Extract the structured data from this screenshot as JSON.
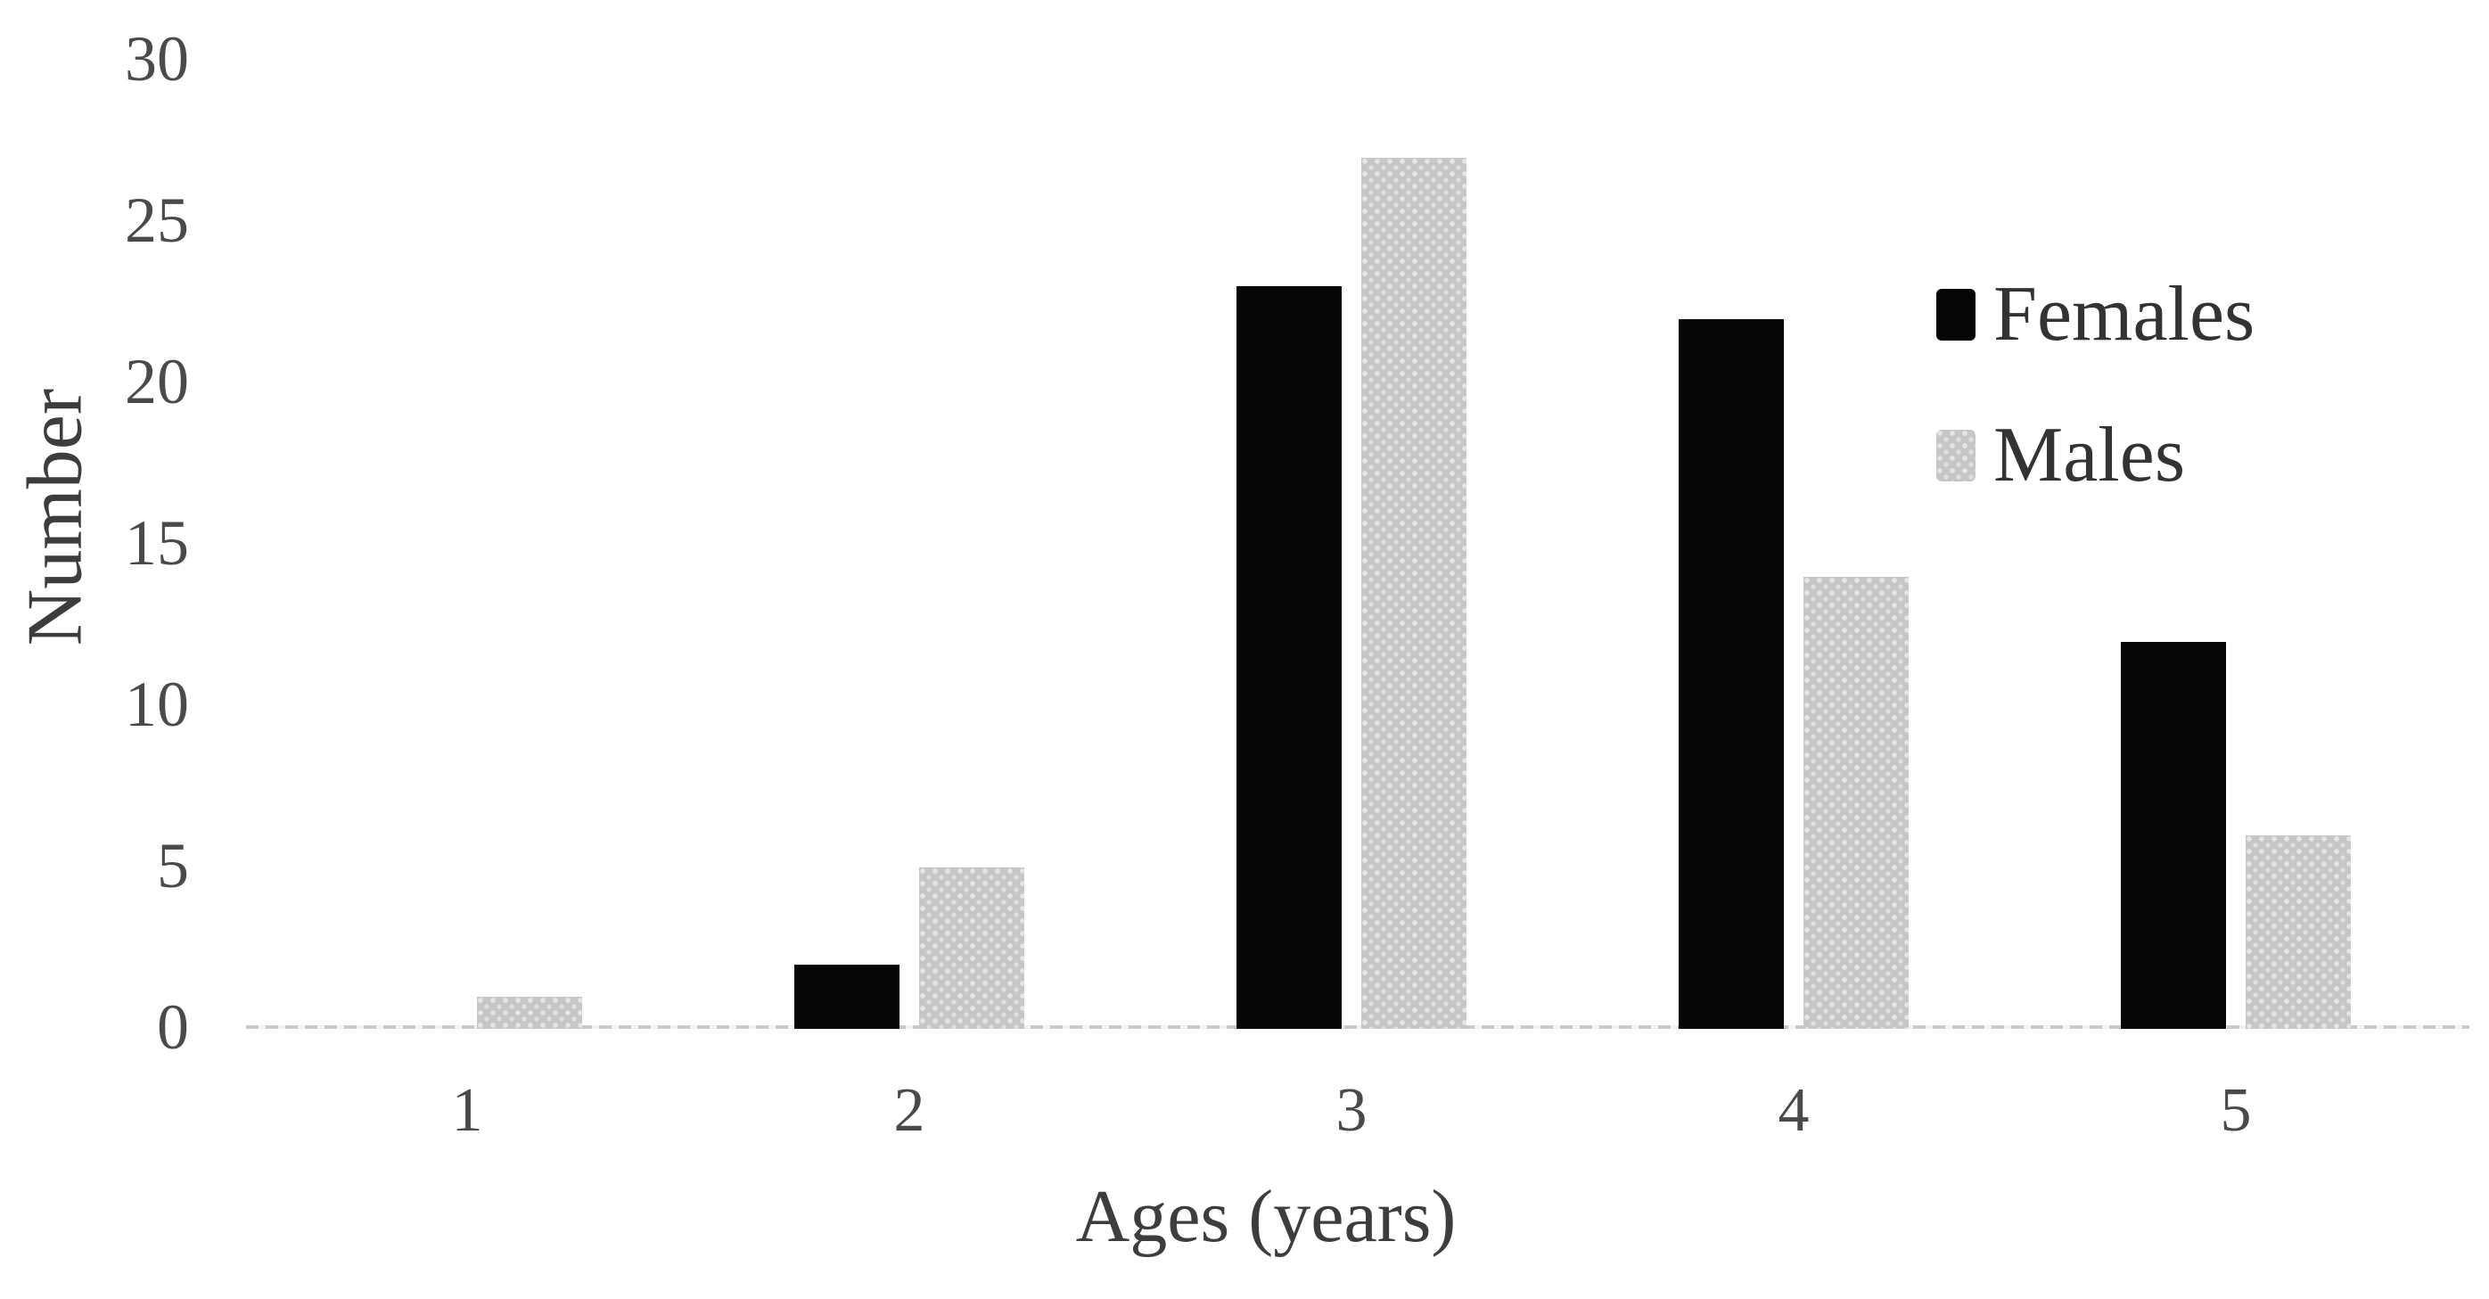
{
  "chart_data": {
    "type": "bar",
    "bar_style": "grouped",
    "title": "",
    "xlabel": "Ages (years)",
    "ylabel": "Number",
    "categories": [
      "1",
      "2",
      "3",
      "4",
      "5"
    ],
    "series": [
      {
        "name": "Females",
        "color": "#060606",
        "values": [
          0,
          2,
          23,
          22,
          12
        ]
      },
      {
        "name": "Males",
        "color": "#c6c6c6",
        "values": [
          1,
          5,
          27,
          14,
          6
        ]
      }
    ],
    "ylim": [
      0,
      30
    ],
    "yticks": [
      0,
      5,
      10,
      15,
      20,
      25,
      30
    ],
    "grid": false,
    "legend_position": "upper right"
  },
  "colors": {
    "background": "#ffffff",
    "females_bar": "#060606",
    "males_bar": "#c6c6c6",
    "axis_line": "#c9c9c9",
    "tick_label": "#4a4a4a",
    "axis_title": "#3d3d3d",
    "legend_text": "#333333"
  }
}
